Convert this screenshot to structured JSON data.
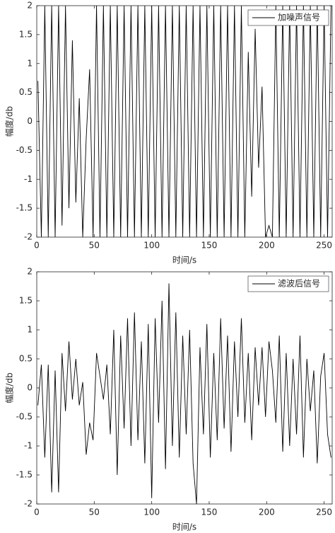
{
  "chart_data": [
    {
      "type": "line",
      "xlabel": "时间/s",
      "ylabel": "幅度/db",
      "x": [
        1,
        4,
        7,
        10,
        13,
        16,
        19,
        22,
        25,
        28,
        31,
        34,
        37,
        40,
        43,
        46,
        49,
        52,
        55,
        58,
        61,
        64,
        67,
        70,
        73,
        76,
        79,
        82,
        85,
        88,
        91,
        94,
        97,
        100,
        103,
        106,
        109,
        112,
        115,
        118,
        121,
        124,
        127,
        130,
        133,
        136,
        139,
        142,
        145,
        148,
        151,
        154,
        157,
        160,
        163,
        166,
        169,
        172,
        175,
        178,
        181,
        184,
        187,
        190,
        193,
        196,
        199,
        202,
        205,
        208,
        211,
        214,
        217,
        220,
        223,
        226,
        229,
        232,
        235,
        238,
        241,
        244,
        247,
        250,
        253,
        256
      ],
      "series": [
        {
          "name": "加噪声信号",
          "color": "#000000",
          "values": [
            0.7,
            -2,
            2,
            -2,
            2,
            -2,
            2,
            -1.8,
            2,
            -1.5,
            1.4,
            -1.4,
            0.4,
            -2,
            -0.3,
            0.9,
            -2,
            2,
            -2,
            2,
            -2,
            2,
            -2,
            2,
            -2,
            2,
            -2,
            2,
            -2,
            2,
            -2,
            2,
            -2,
            2,
            -2,
            2,
            -2,
            2,
            -2,
            2,
            -2,
            2,
            -2,
            2,
            -2,
            2,
            -2,
            2,
            -2,
            2,
            -2,
            2,
            -2,
            2,
            -2,
            2,
            -2,
            2,
            -2,
            2,
            -2,
            1.2,
            -1.3,
            1.6,
            -0.8,
            0.6,
            -2,
            -1.8,
            -2,
            2,
            -2,
            2,
            -2,
            2,
            -2,
            2,
            -2,
            2,
            -2,
            2,
            -2,
            2,
            -2,
            2,
            -2,
            2
          ]
        }
      ],
      "xlim": [
        0,
        257
      ],
      "xticks": [
        0,
        50,
        100,
        150,
        200,
        250
      ],
      "ylim": [
        -2,
        2
      ],
      "yticks": [
        -2,
        -1.5,
        -1,
        -0.5,
        0,
        0.5,
        1,
        1.5,
        2
      ],
      "legend": "upper right"
    },
    {
      "type": "line",
      "xlabel": "时间/s",
      "ylabel": "幅度/db",
      "x": [
        1,
        4,
        7,
        10,
        13,
        16,
        19,
        22,
        25,
        28,
        31,
        34,
        37,
        40,
        43,
        46,
        49,
        52,
        55,
        58,
        61,
        64,
        67,
        70,
        73,
        76,
        79,
        82,
        85,
        88,
        91,
        94,
        97,
        100,
        103,
        106,
        109,
        112,
        115,
        118,
        121,
        124,
        127,
        130,
        133,
        136,
        139,
        142,
        145,
        148,
        151,
        154,
        157,
        160,
        163,
        166,
        169,
        172,
        175,
        178,
        181,
        184,
        187,
        190,
        193,
        196,
        199,
        202,
        205,
        208,
        211,
        214,
        217,
        220,
        223,
        226,
        229,
        232,
        235,
        238,
        241,
        244,
        247,
        250,
        253,
        256
      ],
      "series": [
        {
          "name": "滤波后信号",
          "color": "#000000",
          "values": [
            -0.3,
            0.4,
            -1.2,
            0.4,
            -1.8,
            0.3,
            -1.8,
            0.6,
            -0.4,
            0.8,
            -0.2,
            0.5,
            -0.3,
            0.1,
            -1.15,
            -0.6,
            -0.9,
            0.6,
            0.2,
            -0.2,
            0.4,
            -0.8,
            1.0,
            -1.5,
            0.9,
            -0.7,
            1.2,
            -1.0,
            1.3,
            -0.9,
            0.8,
            -1.3,
            1.1,
            -1.9,
            1.2,
            -0.6,
            1.5,
            -1.4,
            1.8,
            -1.0,
            1.3,
            -1.2,
            0.9,
            -0.8,
            1.0,
            -1.3,
            -2,
            0.7,
            -0.8,
            1.1,
            -1.2,
            0.6,
            -0.9,
            1.2,
            -0.7,
            0.9,
            -1.1,
            0.8,
            -0.5,
            1.2,
            -0.6,
            0.6,
            -0.9,
            0.7,
            -0.3,
            0.7,
            -0.5,
            0.8,
            0.3,
            -0.6,
            0.9,
            -1.1,
            0.6,
            -1.0,
            0.5,
            -0.8,
            0.9,
            -1.2,
            0.5,
            -0.4,
            0.3,
            -1.3,
            0.2,
            0.6,
            -0.8,
            -1.2
          ]
        }
      ],
      "xlim": [
        0,
        257
      ],
      "xticks": [
        0,
        50,
        100,
        150,
        200,
        250
      ],
      "ylim": [
        -2,
        2
      ],
      "yticks": [
        -2,
        -1.5,
        -1,
        -0.5,
        0,
        0.5,
        1,
        1.5,
        2
      ],
      "legend": "upper right"
    }
  ]
}
